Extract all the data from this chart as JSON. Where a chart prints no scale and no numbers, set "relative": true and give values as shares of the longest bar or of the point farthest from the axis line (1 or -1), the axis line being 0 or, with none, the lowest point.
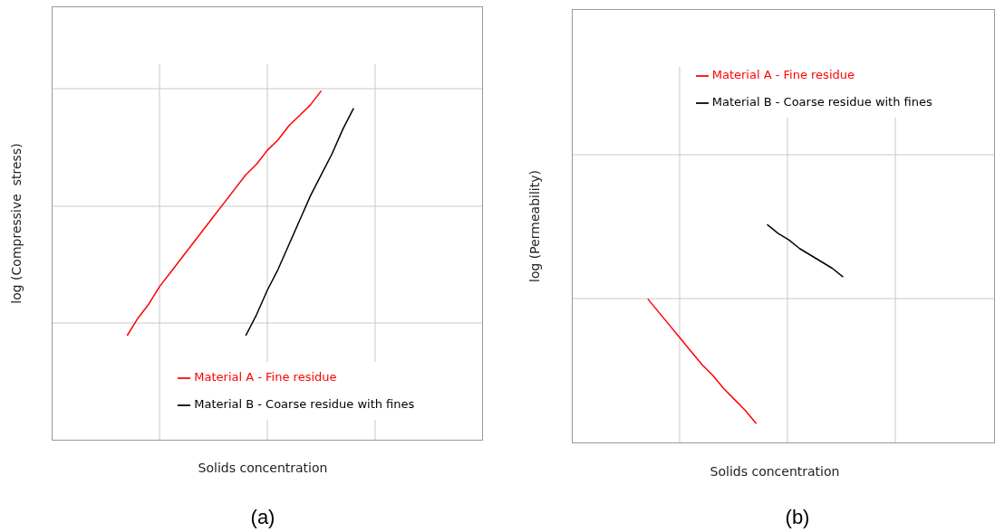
{
  "chart_data": [
    {
      "type": "line",
      "relative": true,
      "xlabel": "Solids concentration",
      "ylabel": "log (Compressive  stress)",
      "annotations": [
        "(a)"
      ],
      "grid": true,
      "legend": "bottom",
      "categories": [
        null,
        null,
        null,
        null,
        null,
        null,
        null,
        null,
        null,
        null,
        null,
        null,
        null,
        null,
        null,
        null,
        null,
        null,
        null,
        null,
        null,
        null,
        null,
        null,
        null,
        null,
        null,
        null,
        null,
        null,
        null,
        null,
        null,
        null,
        null,
        null,
        null,
        null,
        null,
        null,
        null
      ],
      "series": [
        {
          "name": "Material A - Fine residue",
          "color": "#ff0000",
          "values": [
            null,
            null,
            null,
            null,
            null,
            null,
            null,
            0.3,
            0.35,
            0.39,
            0.44,
            0.48,
            0.52,
            0.56,
            0.6,
            0.64,
            0.68,
            0.72,
            0.76,
            0.79,
            0.83,
            0.86,
            0.9,
            0.93,
            0.96,
            1.0,
            null,
            null,
            null,
            null,
            null,
            null,
            null,
            null,
            null,
            null,
            null,
            null,
            null,
            null,
            null
          ]
        },
        {
          "name": "Material B - Coarse residue with fines",
          "color": "#000000",
          "values": [
            null,
            null,
            null,
            null,
            null,
            null,
            null,
            null,
            null,
            null,
            null,
            null,
            null,
            null,
            null,
            null,
            null,
            null,
            0.3,
            0.36,
            0.43,
            0.49,
            0.56,
            0.63,
            0.7,
            0.76,
            0.82,
            0.89,
            0.95,
            null,
            null,
            null,
            null,
            null,
            null,
            null,
            null,
            null,
            null,
            null,
            null
          ]
        }
      ]
    },
    {
      "type": "line",
      "relative": true,
      "xlabel": "Solids concentration",
      "ylabel": "log (Permeability)",
      "annotations": [
        "(b)"
      ],
      "grid": true,
      "legend": "top",
      "categories": [
        null,
        null,
        null,
        null,
        null,
        null,
        null,
        null,
        null,
        null,
        null,
        null,
        null,
        null,
        null,
        null,
        null,
        null,
        null,
        null,
        null,
        null,
        null,
        null,
        null,
        null,
        null,
        null,
        null,
        null,
        null,
        null,
        null,
        null,
        null,
        null,
        null,
        null,
        null,
        null
      ],
      "series": [
        {
          "name": "Material A - Fine residue",
          "color": "#ff0000",
          "values": [
            null,
            null,
            null,
            null,
            null,
            null,
            null,
            0.66,
            0.6,
            0.54,
            0.48,
            0.42,
            0.36,
            0.31,
            0.25,
            0.2,
            0.15,
            0.09,
            null,
            null,
            null,
            null,
            null,
            null,
            null,
            null,
            null,
            null,
            null,
            null,
            null,
            null,
            null,
            null,
            null,
            null,
            null,
            null,
            null,
            null
          ]
        },
        {
          "name": "Material B - Coarse residue with fines",
          "color": "#000000",
          "values": [
            null,
            null,
            null,
            null,
            null,
            null,
            null,
            null,
            null,
            null,
            null,
            null,
            null,
            null,
            null,
            null,
            null,
            null,
            1.0,
            0.96,
            0.93,
            0.89,
            0.86,
            0.83,
            0.8,
            0.76,
            null,
            null,
            null,
            null,
            null,
            null,
            null,
            null,
            null,
            null,
            null,
            null,
            null,
            null
          ]
        }
      ]
    }
  ]
}
